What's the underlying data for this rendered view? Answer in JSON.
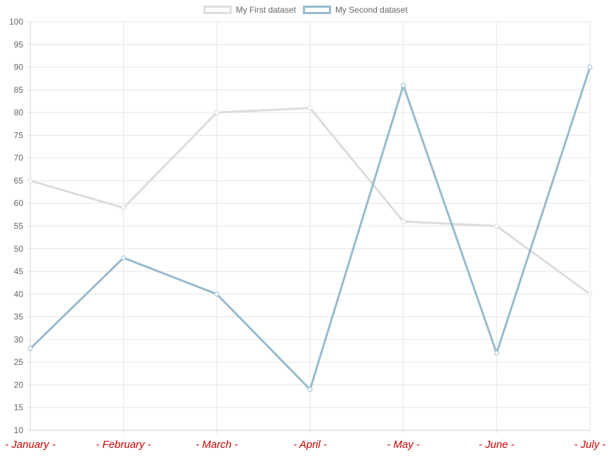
{
  "chart_data": {
    "type": "line",
    "categories": [
      "January",
      "February",
      "March",
      "April",
      "May",
      "June",
      "July"
    ],
    "x_tick_labels": [
      "- January -",
      "- February -",
      "- March -",
      "- April -",
      "- May -",
      "- June -",
      "- July -"
    ],
    "series": [
      {
        "name": "My First dataset",
        "values": [
          65,
          59,
          80,
          81,
          56,
          55,
          40
        ],
        "color": "#dcdcdc"
      },
      {
        "name": "My Second dataset",
        "values": [
          28,
          48,
          40,
          19,
          86,
          27,
          90
        ],
        "color": "#97bbcd"
      }
    ],
    "ylim": [
      10,
      100
    ],
    "ystep": 5,
    "grid": true,
    "legend_position": "top",
    "x_tick_color": "#cc0000"
  }
}
